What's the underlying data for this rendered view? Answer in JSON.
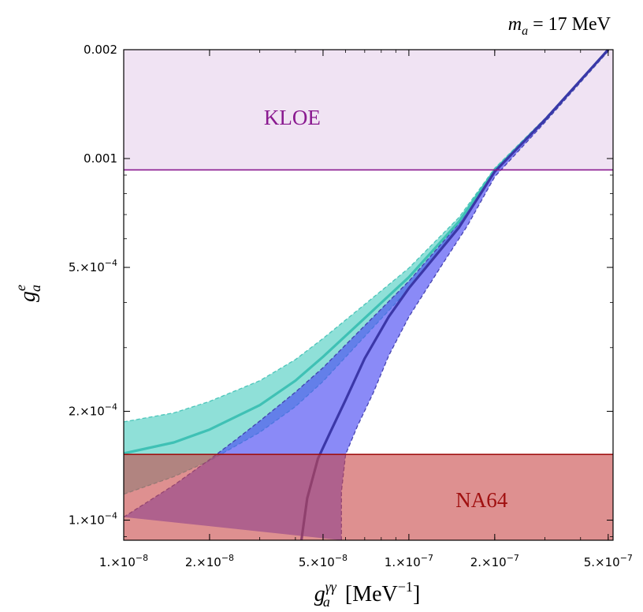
{
  "chart_data": {
    "type": "line",
    "title": "m_a = 17 MeV",
    "title_parts": {
      "var": "m",
      "sub": "a",
      "rest": " = 17 MeV"
    },
    "xlabel": "g_a^γγ [MeV^-1]",
    "xlabel_parts": {
      "var": "g",
      "sub": "a",
      "sup": "γγ",
      "rest": " [MeV",
      "unit_sup": "−1",
      "close": "]"
    },
    "ylabel": "g_a^e",
    "ylabel_parts": {
      "var": "g",
      "sub": "a",
      "sup": "e"
    },
    "x_scale": "log",
    "y_scale": "log",
    "xlim": [
      1e-08,
      5.2e-07
    ],
    "ylim": [
      8.8e-05,
      0.002
    ],
    "grid": false,
    "x_ticks": [
      {
        "value": 1e-08,
        "mant": "1.",
        "exp": "−8"
      },
      {
        "value": 2e-08,
        "mant": "2.",
        "exp": "−8"
      },
      {
        "value": 5e-08,
        "mant": "5.",
        "exp": "−8"
      },
      {
        "value": 1e-07,
        "mant": "1.",
        "exp": "−7"
      },
      {
        "value": 2e-07,
        "mant": "2.",
        "exp": "−7"
      },
      {
        "value": 5e-07,
        "mant": "5.",
        "exp": "−7"
      }
    ],
    "y_ticks": [
      {
        "value": 0.002,
        "plain": "0.002"
      },
      {
        "value": 0.001,
        "plain": "0.001"
      },
      {
        "value": 0.0005,
        "mant": "5.",
        "exp": "−4"
      },
      {
        "value": 0.0002,
        "mant": "2.",
        "exp": "−4"
      },
      {
        "value": 0.0001,
        "mant": "1.",
        "exp": "−4"
      }
    ],
    "regions": [
      {
        "name": "KLOE",
        "y_min": 0.00093,
        "y_max": 0.002,
        "fill": "#f0e3f3",
        "line": "#8a1a90",
        "label_color": "#8a1a90",
        "label_x": 3.9e-08,
        "label_y": 0.00128
      },
      {
        "name": "NA64",
        "y_min": 8.8e-05,
        "y_max": 0.000152,
        "fill": "#c8464699",
        "line": "#a01010",
        "label_color": "#a01010",
        "label_x": 1.8e-07,
        "label_y": 0.000112
      }
    ],
    "series": [
      {
        "color": "#3fc1b5",
        "band_fill": "#5fd3c8b3",
        "central": [
          [
            1e-08,
            0.000153
          ],
          [
            1.5e-08,
            0.000164
          ],
          [
            2e-08,
            0.000178
          ],
          [
            3e-08,
            0.000208
          ],
          [
            4e-08,
            0.000243
          ],
          [
            5e-08,
            0.000283
          ],
          [
            7e-08,
            0.000362
          ],
          [
            1e-07,
            0.00047
          ],
          [
            1.5e-07,
            0.00067
          ],
          [
            2e-07,
            0.00093
          ],
          [
            3e-07,
            0.00128
          ],
          [
            5e-07,
            0.002
          ]
        ],
        "upper": [
          [
            1e-08,
            0.000187
          ],
          [
            1.5e-08,
            0.000198
          ],
          [
            2e-08,
            0.000213
          ],
          [
            3e-08,
            0.000243
          ],
          [
            4e-08,
            0.000278
          ],
          [
            5e-08,
            0.000318
          ],
          [
            7e-08,
            0.000395
          ],
          [
            1e-07,
            0.000498
          ],
          [
            1.5e-07,
            0.000688
          ],
          [
            2e-07,
            0.00094
          ],
          [
            3e-07,
            0.00129
          ],
          [
            5e-07,
            0.002
          ]
        ],
        "lower": [
          [
            1e-08,
            0.000118
          ],
          [
            1.5e-08,
            0.000132
          ],
          [
            2e-08,
            0.000146
          ],
          [
            3e-08,
            0.000175
          ],
          [
            4e-08,
            0.000206
          ],
          [
            5e-08,
            0.000242
          ],
          [
            7e-08,
            0.000322
          ],
          [
            1e-07,
            0.000436
          ],
          [
            1.5e-07,
            0.000648
          ],
          [
            2e-07,
            0.00092
          ],
          [
            3e-07,
            0.00127
          ],
          [
            5e-07,
            0.002
          ]
        ]
      },
      {
        "color": "#3b37a8",
        "band_fill": "#4b4cf2a6",
        "central": [
          [
            4.2e-08,
            8.8e-05
          ],
          [
            4.4e-08,
            0.000115
          ],
          [
            4.8e-08,
            0.000148
          ],
          [
            5.3e-08,
            0.000175
          ],
          [
            6e-08,
            0.000215
          ],
          [
            7e-08,
            0.00028
          ],
          [
            8.5e-08,
            0.000365
          ],
          [
            1e-07,
            0.000438
          ],
          [
            1.5e-07,
            0.000645
          ],
          [
            2e-07,
            0.00092
          ],
          [
            3e-07,
            0.00128
          ],
          [
            5e-07,
            0.002
          ]
        ],
        "upper": [
          [
            1e-08,
            0.000102
          ],
          [
            1.5e-08,
            0.000125
          ],
          [
            2e-08,
            0.000147
          ],
          [
            2.5e-08,
            0.000168
          ],
          [
            3e-08,
            0.000188
          ],
          [
            4e-08,
            0.000226
          ],
          [
            5e-08,
            0.000264
          ],
          [
            7e-08,
            0.000345
          ],
          [
            1e-07,
            0.000458
          ],
          [
            1.5e-07,
            0.000662
          ],
          [
            2e-07,
            0.000935
          ],
          [
            3e-07,
            0.00129
          ],
          [
            5e-07,
            0.002
          ]
        ],
        "lower": [
          [
            5.8e-08,
            8.8e-05
          ],
          [
            5.8e-08,
            0.00012
          ],
          [
            6e-08,
            0.000152
          ],
          [
            6.6e-08,
            0.000182
          ],
          [
            7.5e-08,
            0.000225
          ],
          [
            8.5e-08,
            0.000285
          ],
          [
            1e-07,
            0.000365
          ],
          [
            1.3e-07,
            0.000505
          ],
          [
            1.6e-07,
            0.00065
          ],
          [
            2e-07,
            0.00089
          ],
          [
            3e-07,
            0.00126
          ],
          [
            5e-07,
            0.00198
          ]
        ]
      }
    ]
  }
}
